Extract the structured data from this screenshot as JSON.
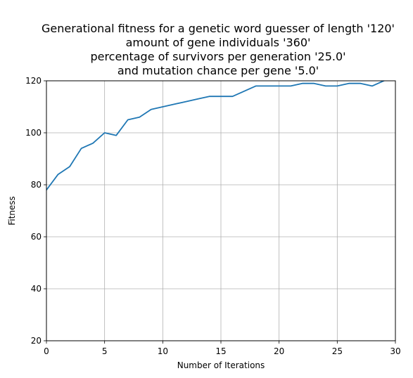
{
  "chart_data": {
    "type": "line",
    "title_lines": [
      "Generational fitness for a genetic word guesser of length '120'",
      "amount of gene individuals '360'",
      "percentage of survivors per generation '25.0'",
      "and mutation chance per gene '5.0'"
    ],
    "xlabel": "Number of Iterations",
    "ylabel": "Fitness",
    "xlim": [
      0,
      30
    ],
    "ylim": [
      20,
      120
    ],
    "xticks": [
      0,
      5,
      10,
      15,
      20,
      25,
      30
    ],
    "yticks": [
      20,
      40,
      60,
      80,
      100,
      120
    ],
    "grid": true,
    "series": [
      {
        "name": "fitness",
        "color": "#1f77b4",
        "x": [
          0,
          1,
          2,
          3,
          4,
          5,
          6,
          7,
          8,
          9,
          10,
          11,
          12,
          13,
          14,
          15,
          16,
          17,
          18,
          19,
          20,
          21,
          22,
          23,
          24,
          25,
          26,
          27,
          28,
          29
        ],
        "y": [
          78,
          84,
          87,
          94,
          96,
          100,
          99,
          105,
          106,
          109,
          110,
          111,
          112,
          113,
          114,
          114,
          114,
          116,
          118,
          118,
          118,
          118,
          119,
          119,
          118,
          118,
          119,
          119,
          118,
          120
        ]
      }
    ]
  }
}
